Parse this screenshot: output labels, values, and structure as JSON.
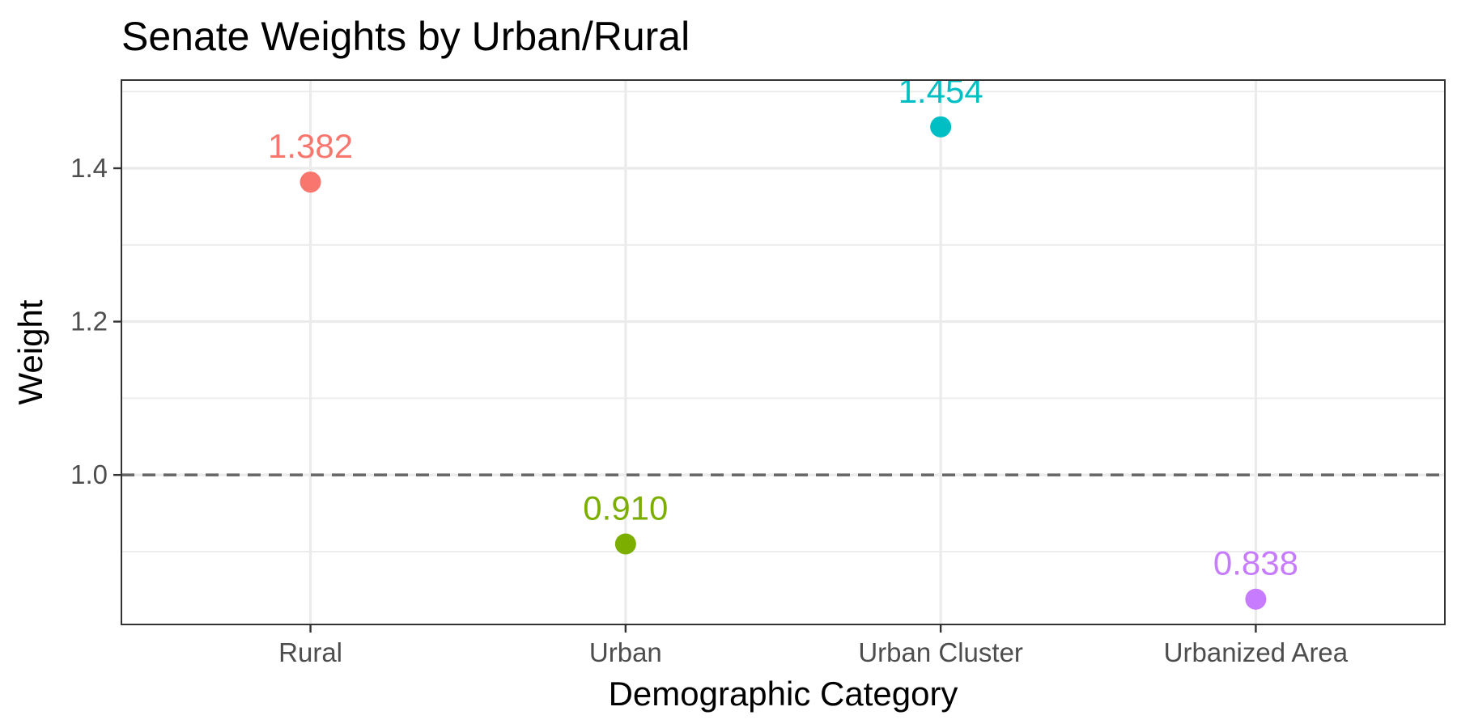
{
  "chart_data": {
    "type": "scatter",
    "title": "Senate Weights by Urban/Rural",
    "xlabel": "Demographic Category",
    "ylabel": "Weight",
    "categories": [
      "Rural",
      "Urban",
      "Urban Cluster",
      "Urbanized Area"
    ],
    "values": [
      1.382,
      0.91,
      1.454,
      0.838
    ],
    "value_labels": [
      "1.382",
      "0.910",
      "1.454",
      "0.838"
    ],
    "colors": [
      "#F8766D",
      "#7CAE00",
      "#00BFC4",
      "#C77CFF"
    ],
    "y_ticks": [
      1.0,
      1.2,
      1.4
    ],
    "y_tick_labels": [
      "1.0",
      "1.2",
      "1.4"
    ],
    "ylim": [
      0.805,
      1.515
    ],
    "reference_line": {
      "y": 1.0,
      "style": "dashed",
      "color": "#666666"
    },
    "grid": true,
    "legend": "none"
  }
}
